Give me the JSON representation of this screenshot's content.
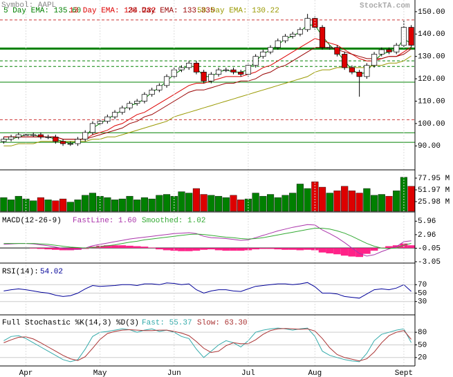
{
  "chart_data": [
    {
      "type": "candlestick",
      "title": "Symbol: AAPL",
      "source": "StockTA.com",
      "open": [
        92,
        93,
        94,
        95,
        95,
        95,
        94,
        94,
        92,
        91,
        91,
        93,
        96,
        100,
        101,
        103,
        105,
        107,
        109,
        110,
        113,
        115,
        117,
        121,
        124,
        125,
        127,
        123,
        119,
        122,
        124,
        124,
        123,
        122,
        126,
        130,
        132,
        134,
        137,
        139,
        140,
        142,
        147,
        143,
        134,
        134,
        131,
        125,
        123,
        121,
        126,
        131,
        133,
        132,
        135,
        143
      ],
      "high": [
        94,
        95,
        96,
        96,
        96,
        96,
        95,
        95,
        93,
        92,
        94,
        97,
        101,
        102,
        104,
        106,
        108,
        110,
        111,
        114,
        116,
        118,
        122,
        125,
        126,
        128,
        128,
        124,
        123,
        125,
        125,
        125,
        124,
        127,
        131,
        133,
        135,
        138,
        140,
        141,
        143,
        149,
        148,
        144,
        135,
        135,
        132,
        126,
        124,
        127,
        132,
        134,
        134,
        136,
        146,
        144
      ],
      "low": [
        91,
        92,
        93,
        94,
        94,
        93,
        93,
        91,
        90,
        90,
        90,
        92,
        95,
        99,
        100,
        102,
        104,
        106,
        108,
        109,
        112,
        114,
        116,
        120,
        123,
        124,
        122,
        118,
        118,
        121,
        123,
        122,
        121,
        121,
        125,
        129,
        131,
        133,
        136,
        138,
        139,
        141,
        142,
        133,
        133,
        130,
        124,
        122,
        112,
        120,
        125,
        130,
        131,
        131,
        134,
        134
      ],
      "close": [
        93,
        94,
        95,
        95,
        95,
        94,
        94,
        92,
        91,
        91,
        93,
        96,
        100,
        101,
        103,
        105,
        107,
        109,
        110,
        113,
        115,
        117,
        121,
        124,
        125,
        127,
        123,
        119,
        122,
        124,
        124,
        123,
        122,
        126,
        130,
        132,
        134,
        137,
        139,
        140,
        142,
        147,
        143,
        134,
        134,
        131,
        125,
        123,
        121,
        126,
        131,
        133,
        132,
        135,
        143,
        135
      ],
      "up_color": "#ffffff",
      "down_color": "#dd0000",
      "series": [
        {
          "name": "5 Day EMA: 135.60",
          "color": "#008000",
          "values": [
            93,
            93,
            94,
            95,
            95,
            94,
            94,
            93,
            92,
            91,
            92,
            94,
            98,
            100,
            102,
            104,
            106,
            108,
            109,
            111,
            114,
            116,
            119,
            122,
            124,
            126,
            125,
            121,
            121,
            123,
            124,
            123,
            123,
            124,
            128,
            131,
            133,
            135,
            138,
            139,
            141,
            144,
            144,
            139,
            135,
            132,
            128,
            124,
            122,
            123,
            128,
            131,
            132,
            133,
            138,
            135.6
          ]
        },
        {
          "name": "13 Day EMA: 134.232",
          "color": "#dd0000",
          "values": [
            94,
            94,
            94,
            94,
            94,
            94,
            94,
            94,
            93,
            93,
            93,
            93,
            95,
            96,
            97,
            99,
            100,
            102,
            104,
            105,
            107,
            109,
            111,
            113,
            115,
            117,
            118,
            118,
            119,
            120,
            121,
            121,
            121,
            122,
            123,
            125,
            126,
            128,
            130,
            132,
            134,
            136,
            138,
            137,
            136,
            135,
            133,
            131,
            129,
            128,
            128,
            129,
            130,
            130,
            132,
            134.232
          ]
        },
        {
          "name": "20 Day EMA: 133.335",
          "color": "#990000",
          "values": [
            94,
            94,
            94,
            94,
            94,
            94,
            94,
            94,
            93,
            93,
            93,
            93,
            94,
            95,
            96,
            97,
            98,
            100,
            101,
            103,
            104,
            106,
            108,
            110,
            112,
            114,
            115,
            115,
            116,
            117,
            118,
            118,
            119,
            119,
            120,
            122,
            123,
            125,
            126,
            128,
            130,
            132,
            134,
            134,
            134,
            133,
            132,
            131,
            130,
            129,
            129,
            129,
            130,
            130,
            131,
            133.335
          ]
        },
        {
          "name": "50 Day EMA: 130.22",
          "color": "#999900",
          "values": [
            90,
            90,
            91,
            91,
            91,
            92,
            92,
            92,
            92,
            92,
            92,
            92,
            93,
            93,
            94,
            94,
            95,
            96,
            97,
            98,
            99,
            100,
            101,
            103,
            104,
            105,
            106,
            107,
            108,
            109,
            110,
            111,
            112,
            113,
            114,
            115,
            116,
            117,
            118,
            119,
            120,
            121,
            123,
            124,
            124,
            125,
            125,
            125,
            125,
            125,
            126,
            126,
            127,
            127,
            128,
            130.22
          ]
        }
      ],
      "levels": [
        {
          "value": 146.3,
          "color": "#cc3333",
          "style": "dash"
        },
        {
          "value": 133.5,
          "color": "#008000",
          "style": "thick"
        },
        {
          "value": 128,
          "color": "#008000",
          "style": "dash"
        },
        {
          "value": 125.5,
          "color": "#008000",
          "style": "dash"
        },
        {
          "value": 118.5,
          "color": "#008000",
          "style": "solid"
        },
        {
          "value": 101.7,
          "color": "#cc3333",
          "style": "dash"
        },
        {
          "value": 95.9,
          "color": "#008000",
          "style": "solid"
        },
        {
          "value": 91.6,
          "color": "#008000",
          "style": "solid"
        }
      ],
      "ylim": [
        79.6,
        154.6
      ],
      "yticks": [
        {
          "value": 150,
          "label": "150.00"
        },
        {
          "value": 140,
          "label": "140.00"
        },
        {
          "value": 130,
          "label": "130.00"
        },
        {
          "value": 120,
          "label": "120.00"
        },
        {
          "value": 110,
          "label": "110.00"
        },
        {
          "value": 100,
          "label": "100.00"
        },
        {
          "value": 90,
          "label": "90.00"
        }
      ]
    },
    {
      "type": "volume",
      "values": [
        35,
        30,
        38,
        32,
        28,
        35,
        30,
        28,
        32,
        25,
        30,
        40,
        45,
        38,
        35,
        30,
        32,
        38,
        30,
        35,
        32,
        40,
        42,
        38,
        48,
        45,
        55,
        42,
        40,
        38,
        35,
        40,
        30,
        32,
        45,
        38,
        42,
        35,
        40,
        45,
        65,
        55,
        70,
        58,
        45,
        50,
        60,
        50,
        45,
        55,
        40,
        42,
        38,
        50,
        80,
        60
      ],
      "up_color": "#008000",
      "down_color": "#dd0000",
      "ylim": [
        4.6,
        93.2
      ],
      "yticks": [
        {
          "value": 77.95,
          "label": "77.95 M"
        },
        {
          "value": 51.97,
          "label": "51.97 M"
        },
        {
          "value": 25.98,
          "label": "25.98 M"
        }
      ]
    },
    {
      "type": "macd",
      "title": "MACD(12-26-9)",
      "series": [
        {
          "name": "FastLine: 1.60",
          "color": "#aa33aa",
          "values": [
            0.8,
            0.9,
            1.0,
            1.0,
            0.9,
            0.7,
            0.5,
            0.2,
            -0.1,
            -0.3,
            -0.3,
            0.0,
            0.5,
            0.8,
            1.1,
            1.4,
            1.7,
            2.0,
            2.2,
            2.4,
            2.6,
            2.8,
            3.0,
            3.2,
            3.3,
            3.4,
            3.2,
            2.6,
            2.3,
            2.2,
            2.1,
            1.9,
            1.7,
            1.8,
            2.3,
            2.8,
            3.3,
            3.8,
            4.2,
            4.6,
            4.9,
            5.2,
            5.1,
            4.0,
            3.2,
            2.3,
            1.2,
            0.0,
            -1.2,
            -1.8,
            -1.5,
            -0.8,
            -0.2,
            0.3,
            1.4,
            1.6
          ]
        },
        {
          "name": "Smoothed: 1.02",
          "color": "#33aa33",
          "values": [
            1.0,
            1.0,
            1.0,
            1.0,
            1.0,
            0.9,
            0.8,
            0.6,
            0.4,
            0.2,
            0.1,
            0.0,
            0.1,
            0.3,
            0.5,
            0.7,
            1.0,
            1.3,
            1.5,
            1.8,
            2.0,
            2.2,
            2.4,
            2.6,
            2.8,
            3.0,
            3.1,
            3.0,
            2.8,
            2.6,
            2.4,
            2.3,
            2.1,
            2.0,
            2.1,
            2.3,
            2.6,
            2.9,
            3.2,
            3.5,
            3.8,
            4.1,
            4.4,
            4.4,
            4.2,
            3.8,
            3.3,
            2.6,
            1.8,
            1.0,
            0.4,
            0.0,
            -0.1,
            0.0,
            0.6,
            1.02
          ]
        }
      ],
      "histogram": {
        "color": "#ff2288",
        "values": [
          0,
          0,
          0,
          0,
          -0.1,
          -0.2,
          -0.3,
          -0.4,
          -0.5,
          -0.5,
          -0.4,
          -0.2,
          0.3,
          0.5,
          0.6,
          0.6,
          0.6,
          0.5,
          0.4,
          0.3,
          0.1,
          -0.3,
          -0.5,
          -0.6,
          -0.7,
          -0.7,
          -0.6,
          -0.4,
          -0.3,
          -0.5,
          -0.6,
          -0.6,
          -0.6,
          -0.5,
          -0.3,
          -0.2,
          -0.2,
          -0.3,
          -0.4,
          -0.4,
          -0.5,
          -0.4,
          -0.5,
          -1.0,
          -1.2,
          -1.4,
          -1.7,
          -1.9,
          -2.0,
          -1.3,
          -0.6,
          0.1,
          0.4,
          0.6,
          1.0,
          0.6
        ]
      },
      "ylim": [
        -3.2,
        7.7
      ],
      "yticks": [
        5.96,
        2.96,
        -0.05,
        -3.05
      ]
    },
    {
      "type": "line",
      "title": "RSI(14):",
      "series": [
        {
          "name": "54.02",
          "color": "#000099",
          "values": [
            55,
            58,
            60,
            58,
            55,
            52,
            50,
            45,
            42,
            44,
            50,
            60,
            68,
            66,
            67,
            68,
            70,
            70,
            68,
            72,
            72,
            70,
            74,
            73,
            70,
            72,
            58,
            50,
            55,
            58,
            58,
            55,
            54,
            60,
            66,
            68,
            70,
            72,
            72,
            70,
            72,
            75,
            65,
            50,
            50,
            48,
            42,
            40,
            38,
            48,
            58,
            60,
            58,
            62,
            70,
            54.02
          ]
        }
      ],
      "ylim": [
        0,
        118
      ],
      "yticks": [
        70,
        50,
        30
      ],
      "grid": true
    },
    {
      "type": "line",
      "title": "Full Stochastic %K(14,3) %D(3)",
      "series": [
        {
          "name": "Fast: 55.37",
          "color": "#33aaaa",
          "values": [
            60,
            70,
            72,
            65,
            55,
            45,
            35,
            25,
            15,
            10,
            15,
            40,
            70,
            80,
            82,
            85,
            88,
            86,
            80,
            85,
            88,
            82,
            85,
            80,
            70,
            65,
            40,
            20,
            35,
            50,
            60,
            55,
            45,
            60,
            80,
            85,
            88,
            90,
            88,
            85,
            88,
            90,
            70,
            35,
            25,
            20,
            15,
            12,
            10,
            30,
            60,
            75,
            80,
            85,
            88,
            55.37
          ]
        },
        {
          "name": "Slow: 63.30",
          "color": "#aa3333",
          "values": [
            55,
            62,
            68,
            69,
            64,
            55,
            45,
            35,
            25,
            17,
            13,
            22,
            42,
            63,
            77,
            82,
            85,
            86,
            85,
            84,
            84,
            85,
            85,
            82,
            78,
            72,
            58,
            42,
            32,
            35,
            48,
            55,
            53,
            53,
            62,
            75,
            84,
            88,
            89,
            88,
            87,
            88,
            83,
            65,
            43,
            27,
            20,
            16,
            12,
            17,
            33,
            55,
            72,
            80,
            84,
            63.3
          ]
        }
      ],
      "categories": [
        null,
        null,
        null,
        "Apr",
        null,
        null,
        null,
        null,
        null,
        null,
        null,
        null,
        null,
        "May",
        null,
        null,
        null,
        null,
        null,
        null,
        null,
        null,
        null,
        "Jun",
        null,
        null,
        null,
        null,
        null,
        null,
        null,
        null,
        null,
        "Jul",
        null,
        null,
        null,
        null,
        null,
        null,
        null,
        null,
        "Aug",
        null,
        null,
        null,
        null,
        null,
        null,
        null,
        null,
        null,
        null,
        null,
        "Sept",
        null
      ],
      "ylim": [
        0,
        118
      ],
      "yticks": [
        80,
        50,
        20
      ],
      "grid": true
    }
  ]
}
